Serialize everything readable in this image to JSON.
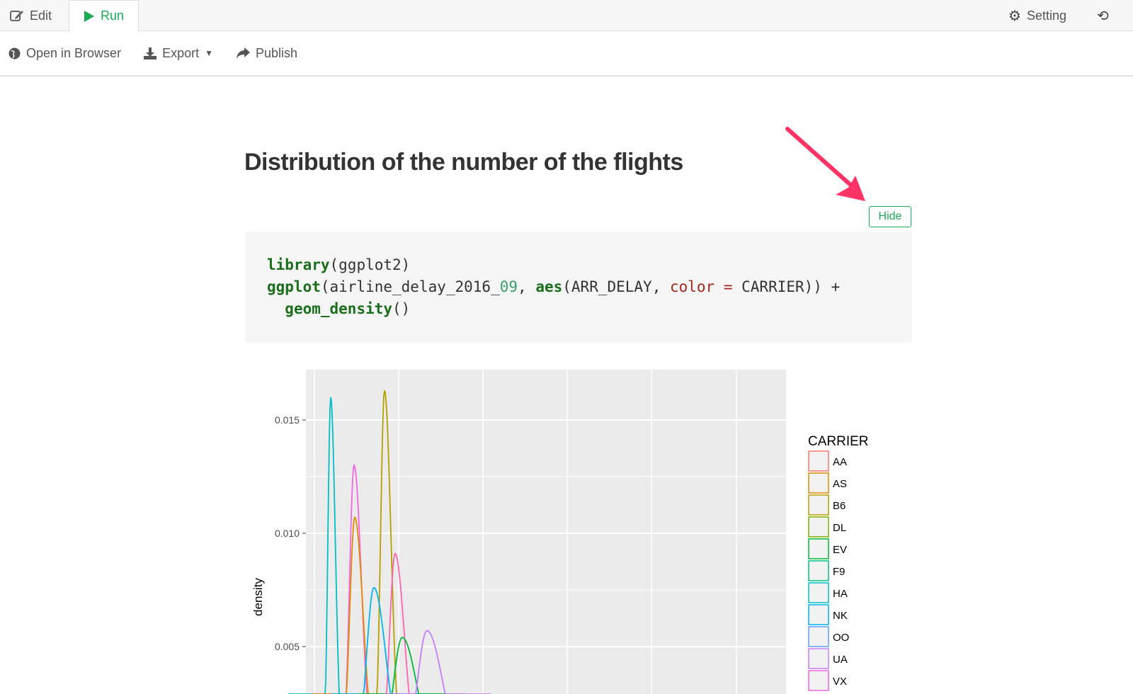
{
  "tabs": [
    {
      "label": "Edit",
      "icon": "edit-icon"
    },
    {
      "label": "Run",
      "icon": "play-icon",
      "active": true
    }
  ],
  "header_right": {
    "setting_label": "Setting",
    "history_icon": "history-icon"
  },
  "toolbar": {
    "open_browser": "Open in Browser",
    "export": "Export",
    "publish": "Publish"
  },
  "page_title": "Distribution of the number of the flights",
  "hide_button": "Hide",
  "code": {
    "l1_fn": "library",
    "l1_rest": "(ggplot2)",
    "l2_fn": "ggplot",
    "l2_a": "(airline_delay_2016_",
    "l2_num": "09",
    "l2_b": ", ",
    "l2_fn2": "aes",
    "l2_c": "(ARR_DELAY, ",
    "l2_arg": "color =",
    "l2_d": " CARRIER)) +",
    "l3_fn": "geom_density",
    "l3_rest": "()"
  },
  "annotation_color": "#ff3366",
  "accent_color": "#1aaa55",
  "chart_data": {
    "type": "line",
    "ylabel": "density",
    "yticks": [
      "0.005",
      "0.010",
      "0.015"
    ],
    "legend": {
      "title": "CARRIER",
      "position": "right",
      "items": [
        {
          "name": "AA",
          "color": "#F8766D"
        },
        {
          "name": "AS",
          "color": "#DE8C00"
        },
        {
          "name": "B6",
          "color": "#B79F00"
        },
        {
          "name": "DL",
          "color": "#7CAE00"
        },
        {
          "name": "EV",
          "color": "#00BA38"
        },
        {
          "name": "F9",
          "color": "#00C08B"
        },
        {
          "name": "HA",
          "color": "#00BFC4"
        },
        {
          "name": "NK",
          "color": "#00B4F0"
        },
        {
          "name": "OO",
          "color": "#619CFF"
        },
        {
          "name": "UA",
          "color": "#C77CFF"
        },
        {
          "name": "VX",
          "color": "#F564E3"
        }
      ]
    },
    "grid": true,
    "series_peaks": [
      {
        "color": "#00BFC4",
        "peak_density": 0.016
      },
      {
        "color": "#B79F00",
        "peak_density": 0.0163
      },
      {
        "color": "#F564E3",
        "peak_density": 0.013
      },
      {
        "color": "#DE8C00",
        "peak_density": 0.0107
      },
      {
        "color": "#FF64B0",
        "peak_density": 0.0091
      },
      {
        "color": "#00B4F0",
        "peak_density": 0.0076
      },
      {
        "color": "#00BA38",
        "peak_density": 0.0054
      },
      {
        "color": "#C77CFF",
        "peak_density": 0.0057
      }
    ]
  }
}
